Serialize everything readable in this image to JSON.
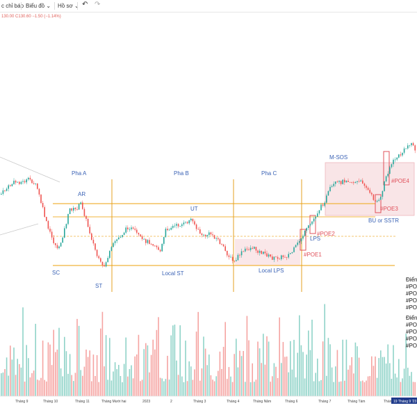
{
  "toolbar": {
    "indicators": "c chỉ báo",
    "chart_label": "Biểu đồ",
    "profile_label": "Hồ sơ",
    "undo_icon": "undo-icon",
    "redo_icon": "redo-icon",
    "chevron_icon": "chevron-down-icon"
  },
  "ohlc_text": "130.00 C130.60 −1.50 (−1.14%)",
  "colors": {
    "up": "#26a69a",
    "down": "#ef5350",
    "level": "#f0b43c",
    "phase": "#e5a020",
    "annotation": "#3a62b5",
    "poe": "#e0505a"
  },
  "chart_data": {
    "type": "candlestick",
    "phases": [
      "Pha A",
      "Pha B",
      "Pha C"
    ],
    "events": [
      "SC",
      "AR",
      "ST",
      "UT",
      "Local ST",
      "Local LPS",
      "LPS",
      "M-SOS",
      "BU or SSTR"
    ],
    "poe_labels": [
      "#POE1",
      "#POE2",
      "#POE3",
      "#POE4"
    ],
    "right_notes": {
      "group1_title": "Điển",
      "group1_items": [
        "#POE",
        "#POE",
        "#POE",
        "#POE"
      ],
      "group2_title": "Điển",
      "group2_items": [
        "#POE",
        "#POE",
        "#POE",
        "#POE"
      ]
    },
    "x_ticks": [
      "Tháng 9",
      "Tháng 10",
      "Tháng 11",
      "Tháng Mười hai",
      "2023",
      "2",
      "Tháng 3",
      "Tháng 4",
      "Tháng Năm",
      "Tháng 6",
      "Tháng 7",
      "Tháng Tám",
      "Thán"
    ],
    "current_date": "19 Tháng 9 '23"
  }
}
